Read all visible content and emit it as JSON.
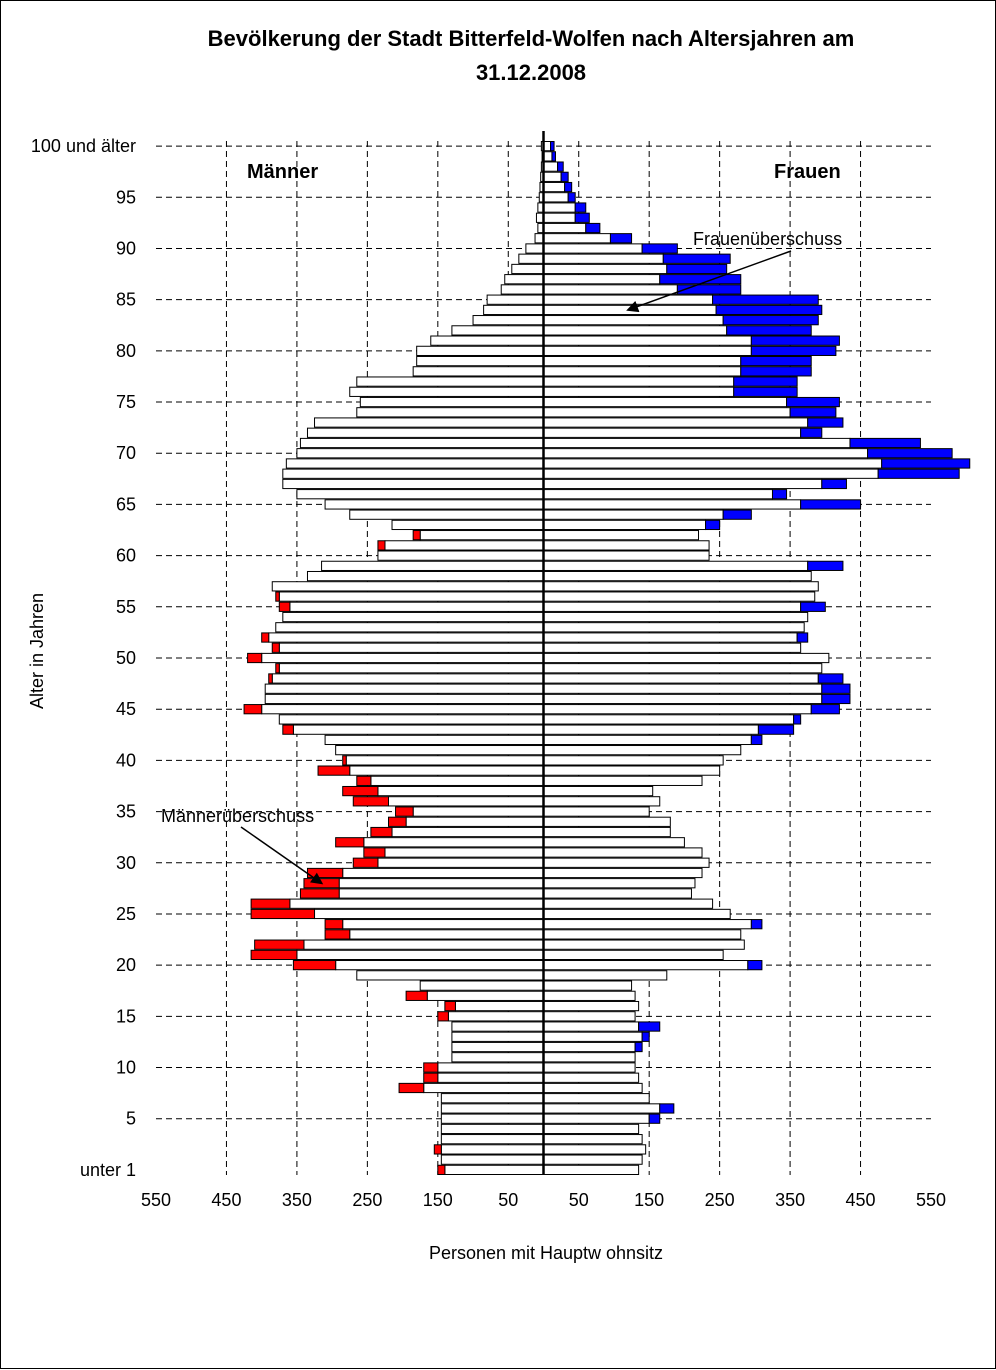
{
  "chart_data": {
    "type": "bar",
    "orientation": "horizontal",
    "subtype": "population-pyramid",
    "title": "Bevölkerung der Stadt Bitterfeld-Wolfen nach Altersjahren am 31.12.2008",
    "title_lines": [
      "Bevölkerung der Stadt Bitterfeld-Wolfen nach Altersjahren am",
      "31.12.2008"
    ],
    "xlabel": "Personen mit Hauptw ohnsitz",
    "ylabel": "Alter in Jahren",
    "x_tick_labels": [
      "550",
      "450",
      "350",
      "250",
      "150",
      "50",
      "50",
      "150",
      "250",
      "350",
      "450",
      "550"
    ],
    "y_tick_labels": [
      {
        "age": 0,
        "label": "unter 1"
      },
      {
        "age": 5,
        "label": "5"
      },
      {
        "age": 10,
        "label": "10"
      },
      {
        "age": 15,
        "label": "15"
      },
      {
        "age": 20,
        "label": "20"
      },
      {
        "age": 25,
        "label": "25"
      },
      {
        "age": 30,
        "label": "30"
      },
      {
        "age": 35,
        "label": "35"
      },
      {
        "age": 40,
        "label": "40"
      },
      {
        "age": 45,
        "label": "45"
      },
      {
        "age": 50,
        "label": "50"
      },
      {
        "age": 55,
        "label": "55"
      },
      {
        "age": 60,
        "label": "60"
      },
      {
        "age": 65,
        "label": "65"
      },
      {
        "age": 70,
        "label": "70"
      },
      {
        "age": 75,
        "label": "75"
      },
      {
        "age": 80,
        "label": "80"
      },
      {
        "age": 85,
        "label": "85"
      },
      {
        "age": 90,
        "label": "90"
      },
      {
        "age": 95,
        "label": "95"
      },
      {
        "age": 100,
        "label": "100 und älter"
      }
    ],
    "xlim": [
      -550,
      550
    ],
    "ylim": [
      0,
      100
    ],
    "grid": true,
    "side_labels": {
      "left": "Männer",
      "right": "Frauen"
    },
    "annotations": [
      {
        "text": "Frauenüberschuss",
        "points_to": {
          "age": 84,
          "value": 120
        }
      },
      {
        "text": "Männerüberschuss",
        "points_to": {
          "age": 28,
          "value": -315
        }
      }
    ],
    "colors": {
      "bar": "#ffffff",
      "outline": "#000000",
      "male_surplus": "#ff0000",
      "female_surplus": "#0000ff",
      "grid": "#000000",
      "background": "#ffffff"
    },
    "ages": [
      0,
      1,
      2,
      3,
      4,
      5,
      6,
      7,
      8,
      9,
      10,
      11,
      12,
      13,
      14,
      15,
      16,
      17,
      18,
      19,
      20,
      21,
      22,
      23,
      24,
      25,
      26,
      27,
      28,
      29,
      30,
      31,
      32,
      33,
      34,
      35,
      36,
      37,
      38,
      39,
      40,
      41,
      42,
      43,
      44,
      45,
      46,
      47,
      48,
      49,
      50,
      51,
      52,
      53,
      54,
      55,
      56,
      57,
      58,
      59,
      60,
      61,
      62,
      63,
      64,
      65,
      66,
      67,
      68,
      69,
      70,
      71,
      72,
      73,
      74,
      75,
      76,
      77,
      78,
      79,
      80,
      81,
      82,
      83,
      84,
      85,
      86,
      87,
      88,
      89,
      90,
      91,
      92,
      93,
      94,
      95,
      96,
      97,
      98,
      99,
      100
    ],
    "series": [
      {
        "name": "Männer",
        "values": [
          140,
          145,
          145,
          145,
          145,
          145,
          145,
          145,
          170,
          150,
          150,
          130,
          130,
          130,
          130,
          135,
          125,
          165,
          175,
          265,
          295,
          350,
          340,
          275,
          285,
          325,
          360,
          290,
          290,
          285,
          235,
          225,
          255,
          215,
          195,
          185,
          220,
          235,
          245,
          275,
          280,
          295,
          310,
          355,
          375,
          400,
          395,
          395,
          385,
          375,
          400,
          375,
          390,
          380,
          370,
          360,
          375,
          385,
          335,
          315,
          235,
          225,
          175,
          215,
          275,
          310,
          350,
          370,
          370,
          365,
          350,
          345,
          335,
          325,
          265,
          260,
          275,
          265,
          185,
          180,
          180,
          160,
          130,
          100,
          85,
          80,
          60,
          55,
          45,
          35,
          25,
          12,
          8,
          10,
          8,
          6,
          5,
          4,
          3,
          2,
          3
        ]
      },
      {
        "name": "Frauen",
        "values": [
          135,
          140,
          145,
          140,
          135,
          150,
          165,
          150,
          140,
          135,
          130,
          130,
          130,
          140,
          135,
          130,
          135,
          130,
          125,
          175,
          290,
          255,
          285,
          280,
          295,
          265,
          240,
          210,
          215,
          225,
          235,
          225,
          200,
          180,
          180,
          150,
          165,
          155,
          225,
          250,
          255,
          280,
          295,
          305,
          355,
          380,
          395,
          395,
          390,
          395,
          405,
          365,
          360,
          370,
          375,
          365,
          385,
          390,
          380,
          375,
          235,
          235,
          220,
          230,
          255,
          365,
          325,
          395,
          475,
          480,
          460,
          435,
          365,
          375,
          350,
          345,
          270,
          270,
          280,
          280,
          295,
          295,
          260,
          255,
          245,
          240,
          190,
          165,
          175,
          170,
          140,
          95,
          60,
          45,
          45,
          35,
          30,
          25,
          20,
          12,
          10
        ]
      },
      {
        "name": "Männerüberschuss",
        "values": [
          10,
          0,
          10,
          0,
          0,
          0,
          0,
          0,
          35,
          20,
          20,
          0,
          0,
          0,
          0,
          15,
          15,
          30,
          0,
          0,
          60,
          65,
          70,
          35,
          25,
          90,
          55,
          55,
          50,
          50,
          35,
          30,
          40,
          30,
          25,
          25,
          50,
          50,
          20,
          45,
          5,
          0,
          0,
          15,
          0,
          25,
          0,
          0,
          5,
          5,
          20,
          10,
          10,
          0,
          0,
          15,
          5,
          0,
          0,
          0,
          0,
          10,
          10,
          0,
          0,
          0,
          0,
          0,
          0,
          0,
          0,
          0,
          0,
          0,
          0,
          0,
          0,
          0,
          0,
          0,
          0,
          0,
          0,
          0,
          0,
          0,
          0,
          0,
          0,
          0,
          0,
          0,
          0,
          0,
          0,
          0,
          0,
          0,
          0,
          0,
          0
        ]
      },
      {
        "name": "Frauenüberschuss",
        "values": [
          0,
          0,
          0,
          0,
          0,
          15,
          20,
          0,
          0,
          0,
          0,
          0,
          10,
          10,
          30,
          0,
          0,
          0,
          0,
          0,
          20,
          0,
          0,
          0,
          15,
          0,
          0,
          0,
          0,
          0,
          0,
          0,
          0,
          0,
          0,
          0,
          0,
          0,
          0,
          0,
          0,
          0,
          15,
          50,
          10,
          40,
          40,
          40,
          35,
          0,
          0,
          0,
          15,
          0,
          0,
          35,
          0,
          0,
          0,
          50,
          0,
          0,
          0,
          20,
          40,
          85,
          20,
          35,
          115,
          125,
          120,
          100,
          30,
          50,
          65,
          75,
          90,
          90,
          100,
          100,
          120,
          125,
          120,
          135,
          150,
          150,
          90,
          115,
          85,
          95,
          50,
          30,
          20,
          20,
          15,
          10,
          10,
          10,
          8,
          5,
          5
        ]
      }
    ]
  }
}
